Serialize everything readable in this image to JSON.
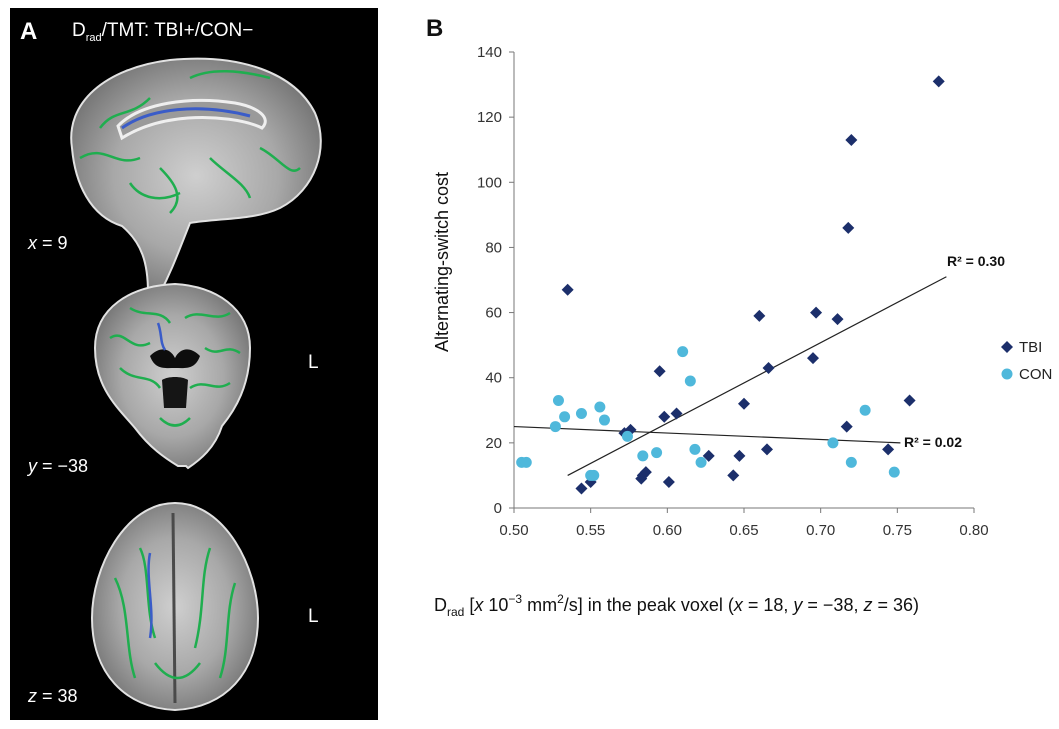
{
  "panel_a": {
    "letter": "A",
    "title_main": "D",
    "title_sub": "rad",
    "title_rest": "/TMT: TBI+/CON−",
    "slices": [
      {
        "var": "x",
        "eq": " = 9",
        "side_label": ""
      },
      {
        "var": "y",
        "eq": " = −38",
        "side_label": "L"
      },
      {
        "var": "z",
        "eq": " = 38",
        "side_label": "L"
      }
    ],
    "colors": {
      "tract": "#1fae4f",
      "cluster": "#3a5cc8"
    }
  },
  "panel_b": {
    "letter": "B",
    "xlabel_main": "D",
    "xlabel_sub": "rad",
    "xlabel_a": " [",
    "xlabel_x": "x",
    "xlabel_b": " 10",
    "xlabel_exp1": "−3",
    "xlabel_c": " mm",
    "xlabel_exp2": "2",
    "xlabel_d": "/s] in the peak voxel (",
    "xlabel_v1": "x",
    "xlabel_e": " = 18, ",
    "xlabel_v2": "y",
    "xlabel_f": " = −38, ",
    "xlabel_v3": "z",
    "xlabel_g": " = 36)",
    "r2_labels": [
      "R² = 0.30",
      "R² = 0.02"
    ]
  },
  "chart_data": {
    "type": "scatter",
    "ylabel": "Alternating-switch cost",
    "xlim": [
      0.5,
      0.8
    ],
    "ylim": [
      0,
      140
    ],
    "x_ticks": [
      "0.50",
      "0.55",
      "0.60",
      "0.65",
      "0.70",
      "0.75",
      "0.80"
    ],
    "y_ticks": [
      "0",
      "20",
      "40",
      "60",
      "80",
      "100",
      "120",
      "140"
    ],
    "grid": false,
    "legend_position": "right",
    "series": [
      {
        "name": "TBI",
        "marker": "diamond",
        "color": "#1c2f6b",
        "points": [
          [
            0.535,
            67
          ],
          [
            0.544,
            6
          ],
          [
            0.55,
            8
          ],
          [
            0.572,
            23
          ],
          [
            0.576,
            24
          ],
          [
            0.583,
            9
          ],
          [
            0.584,
            10
          ],
          [
            0.586,
            11
          ],
          [
            0.595,
            42
          ],
          [
            0.598,
            28
          ],
          [
            0.601,
            8
          ],
          [
            0.606,
            29
          ],
          [
            0.627,
            16
          ],
          [
            0.643,
            10
          ],
          [
            0.647,
            16
          ],
          [
            0.65,
            32
          ],
          [
            0.66,
            59
          ],
          [
            0.665,
            18
          ],
          [
            0.666,
            43
          ],
          [
            0.695,
            46
          ],
          [
            0.697,
            60
          ],
          [
            0.711,
            58
          ],
          [
            0.717,
            25
          ],
          [
            0.718,
            86
          ],
          [
            0.72,
            113
          ],
          [
            0.744,
            18
          ],
          [
            0.758,
            33
          ],
          [
            0.777,
            131
          ]
        ],
        "trend": {
          "r2": 0.3,
          "x": [
            0.535,
            0.782
          ],
          "y": [
            10,
            71
          ]
        }
      },
      {
        "name": "CON",
        "marker": "circle",
        "color": "#4fb8db",
        "points": [
          [
            0.505,
            14
          ],
          [
            0.508,
            14
          ],
          [
            0.527,
            25
          ],
          [
            0.529,
            33
          ],
          [
            0.533,
            28
          ],
          [
            0.544,
            29
          ],
          [
            0.55,
            10
          ],
          [
            0.552,
            10
          ],
          [
            0.556,
            31
          ],
          [
            0.559,
            27
          ],
          [
            0.574,
            22
          ],
          [
            0.584,
            16
          ],
          [
            0.593,
            17
          ],
          [
            0.61,
            48
          ],
          [
            0.615,
            39
          ],
          [
            0.618,
            18
          ],
          [
            0.622,
            14
          ],
          [
            0.708,
            20
          ],
          [
            0.72,
            14
          ],
          [
            0.729,
            30
          ],
          [
            0.748,
            11
          ]
        ],
        "trend": {
          "r2": 0.02,
          "x": [
            0.5,
            0.752
          ],
          "y": [
            25,
            20
          ]
        }
      }
    ]
  }
}
